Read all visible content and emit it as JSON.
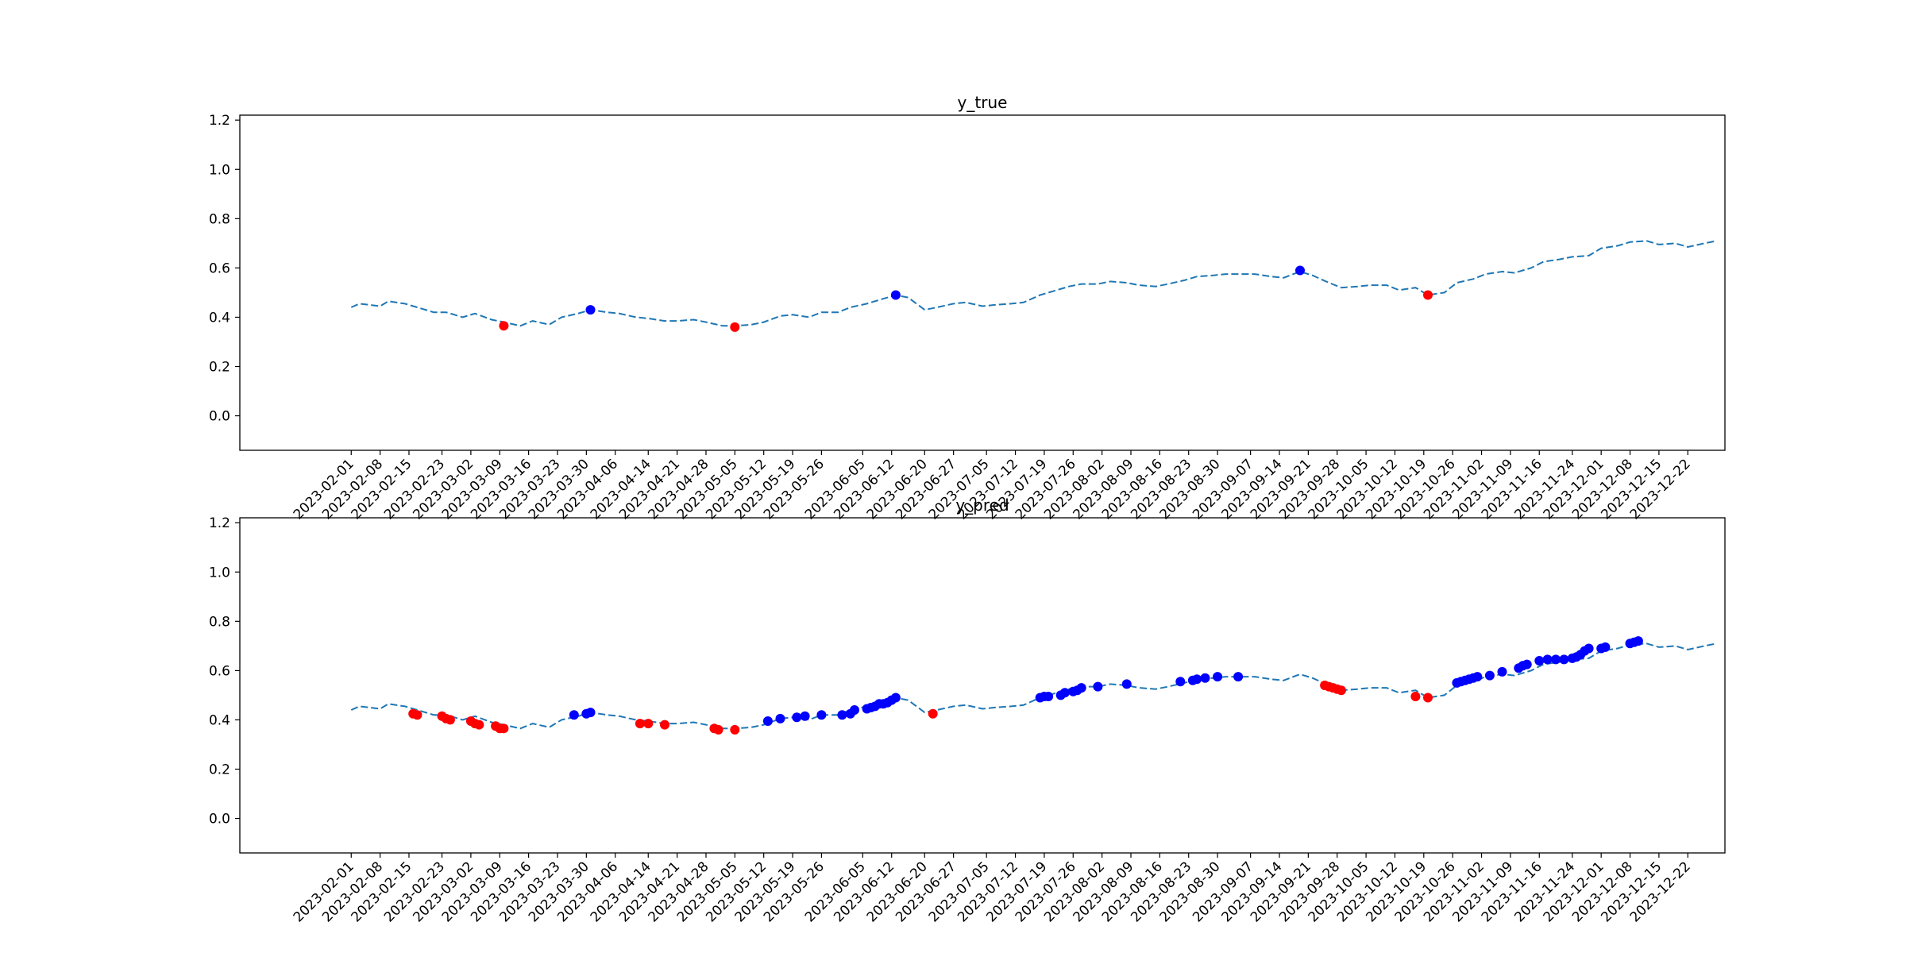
{
  "chart_data": [
    {
      "type": "line",
      "title": "y_true",
      "ylim": [
        -0.14,
        1.22
      ],
      "yticks": [
        0.0,
        0.2,
        0.4,
        0.6,
        0.8,
        1.0,
        1.2
      ],
      "xlim": [
        "2023-01-05",
        "2023-12-31"
      ],
      "xticks": [
        "2023-02-01",
        "2023-02-08",
        "2023-02-15",
        "2023-02-23",
        "2023-03-02",
        "2023-03-09",
        "2023-03-16",
        "2023-03-23",
        "2023-03-30",
        "2023-04-06",
        "2023-04-14",
        "2023-04-21",
        "2023-04-28",
        "2023-05-05",
        "2023-05-12",
        "2023-05-19",
        "2023-05-26",
        "2023-06-05",
        "2023-06-12",
        "2023-06-20",
        "2023-06-27",
        "2023-07-05",
        "2023-07-12",
        "2023-07-19",
        "2023-07-26",
        "2023-08-02",
        "2023-08-09",
        "2023-08-16",
        "2023-08-23",
        "2023-08-30",
        "2023-09-07",
        "2023-09-14",
        "2023-09-21",
        "2023-09-28",
        "2023-10-05",
        "2023-10-12",
        "2023-10-19",
        "2023-10-26",
        "2023-11-02",
        "2023-11-09",
        "2023-11-16",
        "2023-11-24",
        "2023-12-01",
        "2023-12-08",
        "2023-12-15",
        "2023-12-22"
      ],
      "grid": false,
      "line": {
        "color": "#1f77b4",
        "style": "dashed",
        "x": [
          "2023-02-01",
          "2023-02-03",
          "2023-02-08",
          "2023-02-10",
          "2023-02-14",
          "2023-02-17",
          "2023-02-21",
          "2023-02-24",
          "2023-02-28",
          "2023-03-03",
          "2023-03-07",
          "2023-03-10",
          "2023-03-14",
          "2023-03-17",
          "2023-03-21",
          "2023-03-24",
          "2023-03-28",
          "2023-03-31",
          "2023-04-04",
          "2023-04-07",
          "2023-04-11",
          "2023-04-14",
          "2023-04-18",
          "2023-04-21",
          "2023-04-25",
          "2023-04-28",
          "2023-05-02",
          "2023-05-05",
          "2023-05-09",
          "2023-05-12",
          "2023-05-16",
          "2023-05-19",
          "2023-05-23",
          "2023-05-26",
          "2023-05-30",
          "2023-06-02",
          "2023-06-06",
          "2023-06-09",
          "2023-06-13",
          "2023-06-16",
          "2023-06-20",
          "2023-06-23",
          "2023-06-27",
          "2023-06-30",
          "2023-07-04",
          "2023-07-07",
          "2023-07-11",
          "2023-07-14",
          "2023-07-18",
          "2023-07-21",
          "2023-07-25",
          "2023-07-28",
          "2023-08-01",
          "2023-08-04",
          "2023-08-08",
          "2023-08-11",
          "2023-08-15",
          "2023-08-18",
          "2023-08-22",
          "2023-08-25",
          "2023-08-29",
          "2023-09-01",
          "2023-09-05",
          "2023-09-08",
          "2023-09-12",
          "2023-09-15",
          "2023-09-19",
          "2023-09-22",
          "2023-09-26",
          "2023-09-29",
          "2023-10-03",
          "2023-10-06",
          "2023-10-10",
          "2023-10-13",
          "2023-10-17",
          "2023-10-20",
          "2023-10-24",
          "2023-10-27",
          "2023-10-31",
          "2023-11-03",
          "2023-11-07",
          "2023-11-10",
          "2023-11-14",
          "2023-11-17",
          "2023-11-21",
          "2023-11-24",
          "2023-11-28",
          "2023-12-01",
          "2023-12-05",
          "2023-12-08",
          "2023-12-12",
          "2023-12-15",
          "2023-12-19",
          "2023-12-22",
          "2023-12-26",
          "2023-12-29"
        ],
        "y": [
          0.44,
          0.455,
          0.445,
          0.465,
          0.455,
          0.44,
          0.42,
          0.42,
          0.4,
          0.415,
          0.39,
          0.38,
          0.365,
          0.385,
          0.37,
          0.4,
          0.415,
          0.43,
          0.42,
          0.415,
          0.4,
          0.395,
          0.385,
          0.385,
          0.39,
          0.38,
          0.365,
          0.365,
          0.37,
          0.38,
          0.405,
          0.41,
          0.4,
          0.42,
          0.42,
          0.44,
          0.455,
          0.47,
          0.49,
          0.48,
          0.43,
          0.44,
          0.455,
          0.46,
          0.445,
          0.45,
          0.455,
          0.46,
          0.49,
          0.505,
          0.525,
          0.535,
          0.535,
          0.545,
          0.54,
          0.53,
          0.525,
          0.535,
          0.55,
          0.565,
          0.57,
          0.575,
          0.575,
          0.575,
          0.565,
          0.56,
          0.585,
          0.57,
          0.54,
          0.52,
          0.525,
          0.53,
          0.53,
          0.51,
          0.52,
          0.49,
          0.5,
          0.54,
          0.555,
          0.575,
          0.585,
          0.58,
          0.6,
          0.625,
          0.635,
          0.645,
          0.65,
          0.68,
          0.69,
          0.705,
          0.71,
          0.695,
          0.7,
          0.685,
          0.7,
          0.71
        ]
      },
      "points": [
        {
          "x": "2023-03-10",
          "y": 0.365,
          "color": "#ff0000"
        },
        {
          "x": "2023-03-31",
          "y": 0.43,
          "color": "#0000ff"
        },
        {
          "x": "2023-05-05",
          "y": 0.36,
          "color": "#ff0000"
        },
        {
          "x": "2023-06-13",
          "y": 0.49,
          "color": "#0000ff"
        },
        {
          "x": "2023-09-19",
          "y": 0.59,
          "color": "#0000ff"
        },
        {
          "x": "2023-10-20",
          "y": 0.49,
          "color": "#ff0000"
        }
      ]
    },
    {
      "type": "line",
      "title": "y_pred",
      "ylim": [
        -0.14,
        1.22
      ],
      "yticks": [
        0.0,
        0.2,
        0.4,
        0.6,
        0.8,
        1.0,
        1.2
      ],
      "xlim": [
        "2023-01-05",
        "2023-12-31"
      ],
      "xticks": [
        "2023-02-01",
        "2023-02-08",
        "2023-02-15",
        "2023-02-23",
        "2023-03-02",
        "2023-03-09",
        "2023-03-16",
        "2023-03-23",
        "2023-03-30",
        "2023-04-06",
        "2023-04-14",
        "2023-04-21",
        "2023-04-28",
        "2023-05-05",
        "2023-05-12",
        "2023-05-19",
        "2023-05-26",
        "2023-06-05",
        "2023-06-12",
        "2023-06-20",
        "2023-06-27",
        "2023-07-05",
        "2023-07-12",
        "2023-07-19",
        "2023-07-26",
        "2023-08-02",
        "2023-08-09",
        "2023-08-16",
        "2023-08-23",
        "2023-08-30",
        "2023-09-07",
        "2023-09-14",
        "2023-09-21",
        "2023-09-28",
        "2023-10-05",
        "2023-10-12",
        "2023-10-19",
        "2023-10-26",
        "2023-11-02",
        "2023-11-09",
        "2023-11-16",
        "2023-11-24",
        "2023-12-01",
        "2023-12-08",
        "2023-12-15",
        "2023-12-22"
      ],
      "grid": false,
      "line": {
        "color": "#1f77b4",
        "style": "dashed",
        "x": [
          "2023-02-01",
          "2023-02-03",
          "2023-02-08",
          "2023-02-10",
          "2023-02-14",
          "2023-02-17",
          "2023-02-21",
          "2023-02-24",
          "2023-02-28",
          "2023-03-03",
          "2023-03-07",
          "2023-03-10",
          "2023-03-14",
          "2023-03-17",
          "2023-03-21",
          "2023-03-24",
          "2023-03-28",
          "2023-03-31",
          "2023-04-04",
          "2023-04-07",
          "2023-04-11",
          "2023-04-14",
          "2023-04-18",
          "2023-04-21",
          "2023-04-25",
          "2023-04-28",
          "2023-05-02",
          "2023-05-05",
          "2023-05-09",
          "2023-05-12",
          "2023-05-16",
          "2023-05-19",
          "2023-05-23",
          "2023-05-26",
          "2023-05-30",
          "2023-06-02",
          "2023-06-06",
          "2023-06-09",
          "2023-06-13",
          "2023-06-16",
          "2023-06-20",
          "2023-06-23",
          "2023-06-27",
          "2023-06-30",
          "2023-07-04",
          "2023-07-07",
          "2023-07-11",
          "2023-07-14",
          "2023-07-18",
          "2023-07-21",
          "2023-07-25",
          "2023-07-28",
          "2023-08-01",
          "2023-08-04",
          "2023-08-08",
          "2023-08-11",
          "2023-08-15",
          "2023-08-18",
          "2023-08-22",
          "2023-08-25",
          "2023-08-29",
          "2023-09-01",
          "2023-09-05",
          "2023-09-08",
          "2023-09-12",
          "2023-09-15",
          "2023-09-19",
          "2023-09-22",
          "2023-09-26",
          "2023-09-29",
          "2023-10-03",
          "2023-10-06",
          "2023-10-10",
          "2023-10-13",
          "2023-10-17",
          "2023-10-20",
          "2023-10-24",
          "2023-10-27",
          "2023-10-31",
          "2023-11-03",
          "2023-11-07",
          "2023-11-10",
          "2023-11-14",
          "2023-11-17",
          "2023-11-21",
          "2023-11-24",
          "2023-11-28",
          "2023-12-01",
          "2023-12-05",
          "2023-12-08",
          "2023-12-12",
          "2023-12-15",
          "2023-12-19",
          "2023-12-22",
          "2023-12-26",
          "2023-12-29"
        ],
        "y": [
          0.44,
          0.455,
          0.445,
          0.465,
          0.455,
          0.44,
          0.42,
          0.42,
          0.4,
          0.415,
          0.39,
          0.38,
          0.365,
          0.385,
          0.37,
          0.4,
          0.415,
          0.43,
          0.42,
          0.415,
          0.4,
          0.395,
          0.385,
          0.385,
          0.39,
          0.38,
          0.365,
          0.365,
          0.37,
          0.38,
          0.405,
          0.41,
          0.4,
          0.42,
          0.42,
          0.44,
          0.455,
          0.47,
          0.49,
          0.48,
          0.43,
          0.44,
          0.455,
          0.46,
          0.445,
          0.45,
          0.455,
          0.46,
          0.49,
          0.505,
          0.525,
          0.535,
          0.535,
          0.545,
          0.54,
          0.53,
          0.525,
          0.535,
          0.55,
          0.565,
          0.57,
          0.575,
          0.575,
          0.575,
          0.565,
          0.56,
          0.585,
          0.57,
          0.54,
          0.52,
          0.525,
          0.53,
          0.53,
          0.51,
          0.52,
          0.49,
          0.5,
          0.54,
          0.555,
          0.575,
          0.585,
          0.58,
          0.6,
          0.625,
          0.635,
          0.645,
          0.65,
          0.68,
          0.69,
          0.705,
          0.71,
          0.695,
          0.7,
          0.685,
          0.7,
          0.71
        ]
      },
      "points": [
        {
          "x": "2023-02-16",
          "y": 0.425,
          "color": "#ff0000"
        },
        {
          "x": "2023-02-17",
          "y": 0.42,
          "color": "#ff0000"
        },
        {
          "x": "2023-02-23",
          "y": 0.415,
          "color": "#ff0000"
        },
        {
          "x": "2023-02-24",
          "y": 0.405,
          "color": "#ff0000"
        },
        {
          "x": "2023-02-25",
          "y": 0.4,
          "color": "#ff0000"
        },
        {
          "x": "2023-03-02",
          "y": 0.395,
          "color": "#ff0000"
        },
        {
          "x": "2023-03-03",
          "y": 0.385,
          "color": "#ff0000"
        },
        {
          "x": "2023-03-04",
          "y": 0.38,
          "color": "#ff0000"
        },
        {
          "x": "2023-03-08",
          "y": 0.375,
          "color": "#ff0000"
        },
        {
          "x": "2023-03-09",
          "y": 0.365,
          "color": "#ff0000"
        },
        {
          "x": "2023-03-10",
          "y": 0.365,
          "color": "#ff0000"
        },
        {
          "x": "2023-03-27",
          "y": 0.42,
          "color": "#0000ff"
        },
        {
          "x": "2023-03-30",
          "y": 0.425,
          "color": "#0000ff"
        },
        {
          "x": "2023-03-31",
          "y": 0.43,
          "color": "#0000ff"
        },
        {
          "x": "2023-04-12",
          "y": 0.385,
          "color": "#ff0000"
        },
        {
          "x": "2023-04-14",
          "y": 0.385,
          "color": "#ff0000"
        },
        {
          "x": "2023-04-18",
          "y": 0.38,
          "color": "#ff0000"
        },
        {
          "x": "2023-04-30",
          "y": 0.365,
          "color": "#ff0000"
        },
        {
          "x": "2023-05-01",
          "y": 0.36,
          "color": "#ff0000"
        },
        {
          "x": "2023-05-05",
          "y": 0.36,
          "color": "#ff0000"
        },
        {
          "x": "2023-05-13",
          "y": 0.395,
          "color": "#0000ff"
        },
        {
          "x": "2023-05-16",
          "y": 0.405,
          "color": "#0000ff"
        },
        {
          "x": "2023-05-20",
          "y": 0.41,
          "color": "#0000ff"
        },
        {
          "x": "2023-05-22",
          "y": 0.415,
          "color": "#0000ff"
        },
        {
          "x": "2023-05-26",
          "y": 0.42,
          "color": "#0000ff"
        },
        {
          "x": "2023-05-31",
          "y": 0.42,
          "color": "#0000ff"
        },
        {
          "x": "2023-06-02",
          "y": 0.425,
          "color": "#0000ff"
        },
        {
          "x": "2023-06-03",
          "y": 0.44,
          "color": "#0000ff"
        },
        {
          "x": "2023-06-06",
          "y": 0.445,
          "color": "#0000ff"
        },
        {
          "x": "2023-06-07",
          "y": 0.45,
          "color": "#0000ff"
        },
        {
          "x": "2023-06-08",
          "y": 0.455,
          "color": "#0000ff"
        },
        {
          "x": "2023-06-09",
          "y": 0.465,
          "color": "#0000ff"
        },
        {
          "x": "2023-06-10",
          "y": 0.465,
          "color": "#0000ff"
        },
        {
          "x": "2023-06-11",
          "y": 0.47,
          "color": "#0000ff"
        },
        {
          "x": "2023-06-12",
          "y": 0.48,
          "color": "#0000ff"
        },
        {
          "x": "2023-06-13",
          "y": 0.49,
          "color": "#0000ff"
        },
        {
          "x": "2023-06-22",
          "y": 0.425,
          "color": "#ff0000"
        },
        {
          "x": "2023-07-18",
          "y": 0.49,
          "color": "#0000ff"
        },
        {
          "x": "2023-07-19",
          "y": 0.495,
          "color": "#0000ff"
        },
        {
          "x": "2023-07-20",
          "y": 0.495,
          "color": "#0000ff"
        },
        {
          "x": "2023-07-23",
          "y": 0.5,
          "color": "#0000ff"
        },
        {
          "x": "2023-07-24",
          "y": 0.51,
          "color": "#0000ff"
        },
        {
          "x": "2023-07-26",
          "y": 0.515,
          "color": "#0000ff"
        },
        {
          "x": "2023-07-27",
          "y": 0.52,
          "color": "#0000ff"
        },
        {
          "x": "2023-07-28",
          "y": 0.53,
          "color": "#0000ff"
        },
        {
          "x": "2023-08-01",
          "y": 0.535,
          "color": "#0000ff"
        },
        {
          "x": "2023-08-08",
          "y": 0.545,
          "color": "#0000ff"
        },
        {
          "x": "2023-08-21",
          "y": 0.555,
          "color": "#0000ff"
        },
        {
          "x": "2023-08-24",
          "y": 0.56,
          "color": "#0000ff"
        },
        {
          "x": "2023-08-25",
          "y": 0.565,
          "color": "#0000ff"
        },
        {
          "x": "2023-08-27",
          "y": 0.57,
          "color": "#0000ff"
        },
        {
          "x": "2023-08-30",
          "y": 0.575,
          "color": "#0000ff"
        },
        {
          "x": "2023-09-04",
          "y": 0.575,
          "color": "#0000ff"
        },
        {
          "x": "2023-09-25",
          "y": 0.54,
          "color": "#ff0000"
        },
        {
          "x": "2023-09-26",
          "y": 0.535,
          "color": "#ff0000"
        },
        {
          "x": "2023-09-27",
          "y": 0.53,
          "color": "#ff0000"
        },
        {
          "x": "2023-09-28",
          "y": 0.525,
          "color": "#ff0000"
        },
        {
          "x": "2023-09-29",
          "y": 0.52,
          "color": "#ff0000"
        },
        {
          "x": "2023-10-17",
          "y": 0.495,
          "color": "#ff0000"
        },
        {
          "x": "2023-10-20",
          "y": 0.49,
          "color": "#ff0000"
        },
        {
          "x": "2023-10-27",
          "y": 0.55,
          "color": "#0000ff"
        },
        {
          "x": "2023-10-28",
          "y": 0.555,
          "color": "#0000ff"
        },
        {
          "x": "2023-10-29",
          "y": 0.56,
          "color": "#0000ff"
        },
        {
          "x": "2023-10-30",
          "y": 0.565,
          "color": "#0000ff"
        },
        {
          "x": "2023-10-31",
          "y": 0.57,
          "color": "#0000ff"
        },
        {
          "x": "2023-11-01",
          "y": 0.575,
          "color": "#0000ff"
        },
        {
          "x": "2023-11-04",
          "y": 0.58,
          "color": "#0000ff"
        },
        {
          "x": "2023-11-07",
          "y": 0.595,
          "color": "#0000ff"
        },
        {
          "x": "2023-11-11",
          "y": 0.61,
          "color": "#0000ff"
        },
        {
          "x": "2023-11-12",
          "y": 0.62,
          "color": "#0000ff"
        },
        {
          "x": "2023-11-13",
          "y": 0.625,
          "color": "#0000ff"
        },
        {
          "x": "2023-11-16",
          "y": 0.64,
          "color": "#0000ff"
        },
        {
          "x": "2023-11-18",
          "y": 0.645,
          "color": "#0000ff"
        },
        {
          "x": "2023-11-20",
          "y": 0.645,
          "color": "#0000ff"
        },
        {
          "x": "2023-11-22",
          "y": 0.645,
          "color": "#0000ff"
        },
        {
          "x": "2023-11-24",
          "y": 0.65,
          "color": "#0000ff"
        },
        {
          "x": "2023-11-25",
          "y": 0.655,
          "color": "#0000ff"
        },
        {
          "x": "2023-11-26",
          "y": 0.665,
          "color": "#0000ff"
        },
        {
          "x": "2023-11-27",
          "y": 0.68,
          "color": "#0000ff"
        },
        {
          "x": "2023-11-28",
          "y": 0.69,
          "color": "#0000ff"
        },
        {
          "x": "2023-12-01",
          "y": 0.69,
          "color": "#0000ff"
        },
        {
          "x": "2023-12-02",
          "y": 0.695,
          "color": "#0000ff"
        },
        {
          "x": "2023-12-08",
          "y": 0.71,
          "color": "#0000ff"
        },
        {
          "x": "2023-12-09",
          "y": 0.715,
          "color": "#0000ff"
        },
        {
          "x": "2023-12-10",
          "y": 0.72,
          "color": "#0000ff"
        }
      ]
    }
  ]
}
